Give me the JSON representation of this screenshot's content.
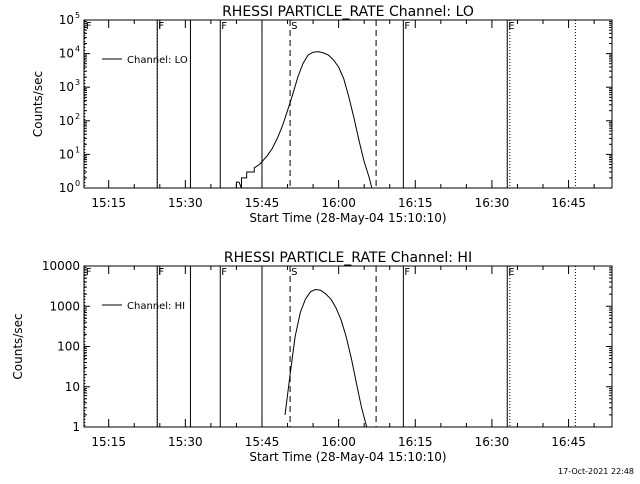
{
  "chart_data": [
    {
      "type": "line",
      "title": "RHESSI  PARTICLE_RATE  Channel: LO",
      "xlabel": "Start Time (28-May-04 15:10:10)",
      "ylabel": "Counts/sec",
      "yscale": "log",
      "ylim": [
        1,
        100000
      ],
      "xlim": [
        "15:10:10",
        "16:53:30"
      ],
      "xticks": [
        "15:15",
        "15:30",
        "15:45",
        "16:00",
        "16:15",
        "16:30",
        "16:45"
      ],
      "yticks": [
        {
          "value": 1,
          "base": "10",
          "exp": "0"
        },
        {
          "value": 10,
          "base": "10",
          "exp": "1"
        },
        {
          "value": 100,
          "base": "10",
          "exp": "2"
        },
        {
          "value": 1000,
          "base": "10",
          "exp": "3"
        },
        {
          "value": 10000,
          "base": "10",
          "exp": "4"
        },
        {
          "value": 100000,
          "base": "10",
          "exp": "5"
        }
      ],
      "legend": {
        "label": "Channel: LO",
        "placement": "top-left"
      },
      "grid": false,
      "series": [
        {
          "name": "Channel: LO",
          "x": [
            "15:39:30",
            "15:40:00",
            "15:40:00",
            "15:40:30",
            "15:41:00",
            "15:41:00",
            "15:42:00",
            "15:42:00",
            "15:43:30",
            "15:43:30",
            "15:44:30",
            "15:46:00",
            "15:47:00",
            "15:48:00",
            "15:49:00",
            "15:50:00",
            "15:51:00",
            "15:52:00",
            "15:53:00",
            "15:54:00",
            "15:55:00",
            "15:56:00",
            "15:57:00",
            "15:58:00",
            "15:59:00",
            "16:00:00",
            "16:01:00",
            "16:02:00",
            "16:03:00",
            "16:04:00",
            "16:05:00",
            "16:06:00",
            "16:06:30"
          ],
          "y": [
            1,
            1,
            1.5,
            1.5,
            1,
            2,
            2,
            3,
            3,
            4,
            5,
            9,
            15,
            30,
            70,
            200,
            600,
            2000,
            5000,
            9000,
            11000,
            11500,
            10500,
            9000,
            6500,
            4000,
            1800,
            500,
            120,
            25,
            6,
            2,
            1
          ]
        }
      ],
      "markers": [
        {
          "label": "F",
          "time": "15:10:20",
          "style": "dotted"
        },
        {
          "label": "F",
          "time": "15:24:30",
          "style": "dotted"
        },
        {
          "label": "F",
          "time": "15:24:30",
          "style": "solid"
        },
        {
          "label": "",
          "time": "15:31:00",
          "style": "solid"
        },
        {
          "label": "F",
          "time": "15:36:50",
          "style": "solid"
        },
        {
          "label": "",
          "time": "15:45:00",
          "style": "solid"
        },
        {
          "label": "S",
          "time": "15:50:30",
          "style": "dashed"
        },
        {
          "label": "",
          "time": "16:07:20",
          "style": "dashed"
        },
        {
          "label": "F",
          "time": "16:12:40",
          "style": "solid"
        },
        {
          "label": "E",
          "time": "16:33:00",
          "style": "solid"
        },
        {
          "label": "",
          "time": "16:33:30",
          "style": "dotted"
        },
        {
          "label": "",
          "time": "16:46:20",
          "style": "dotted"
        }
      ]
    },
    {
      "type": "line",
      "title": "RHESSI  PARTICLE_RATE  Channel: HI",
      "xlabel": "Start Time (28-May-04 15:10:10)",
      "ylabel": "Counts/sec",
      "yscale": "log",
      "ylim": [
        1,
        10000
      ],
      "xlim": [
        "15:10:10",
        "16:53:30"
      ],
      "xticks": [
        "15:15",
        "15:30",
        "15:45",
        "16:00",
        "16:15",
        "16:30",
        "16:45"
      ],
      "yticks": [
        {
          "value": 1,
          "base": "1",
          "exp": ""
        },
        {
          "value": 10,
          "base": "10",
          "exp": ""
        },
        {
          "value": 100,
          "base": "100",
          "exp": ""
        },
        {
          "value": 1000,
          "base": "1000",
          "exp": ""
        },
        {
          "value": 10000,
          "base": "10000",
          "exp": ""
        }
      ],
      "legend": {
        "label": "Channel: HI",
        "placement": "top-left"
      },
      "grid": false,
      "series": [
        {
          "name": "Channel: HI",
          "x": [
            "15:49:30",
            "15:50:30",
            "15:51:30",
            "15:52:30",
            "15:53:30",
            "15:54:30",
            "15:55:30",
            "15:56:30",
            "15:57:30",
            "15:58:30",
            "15:59:30",
            "16:00:30",
            "16:01:30",
            "16:02:30",
            "16:03:30",
            "16:04:30",
            "16:05:30"
          ],
          "y": [
            2,
            20,
            180,
            700,
            1500,
            2300,
            2600,
            2500,
            2000,
            1500,
            900,
            450,
            170,
            50,
            12,
            3,
            1
          ]
        }
      ],
      "markers": [
        {
          "label": "F",
          "time": "15:10:20",
          "style": "dotted"
        },
        {
          "label": "F",
          "time": "15:24:30",
          "style": "dotted"
        },
        {
          "label": "F",
          "time": "15:24:30",
          "style": "solid"
        },
        {
          "label": "",
          "time": "15:31:00",
          "style": "solid"
        },
        {
          "label": "F",
          "time": "15:36:50",
          "style": "solid"
        },
        {
          "label": "",
          "time": "15:45:00",
          "style": "solid"
        },
        {
          "label": "S",
          "time": "15:50:30",
          "style": "dashed"
        },
        {
          "label": "",
          "time": "16:07:20",
          "style": "dashed"
        },
        {
          "label": "F",
          "time": "16:12:40",
          "style": "solid"
        },
        {
          "label": "E",
          "time": "16:33:00",
          "style": "solid"
        },
        {
          "label": "",
          "time": "16:33:30",
          "style": "dotted"
        },
        {
          "label": "",
          "time": "16:46:20",
          "style": "dotted"
        }
      ]
    }
  ],
  "footer": {
    "timestamp": "17-Oct-2021 22:48"
  }
}
